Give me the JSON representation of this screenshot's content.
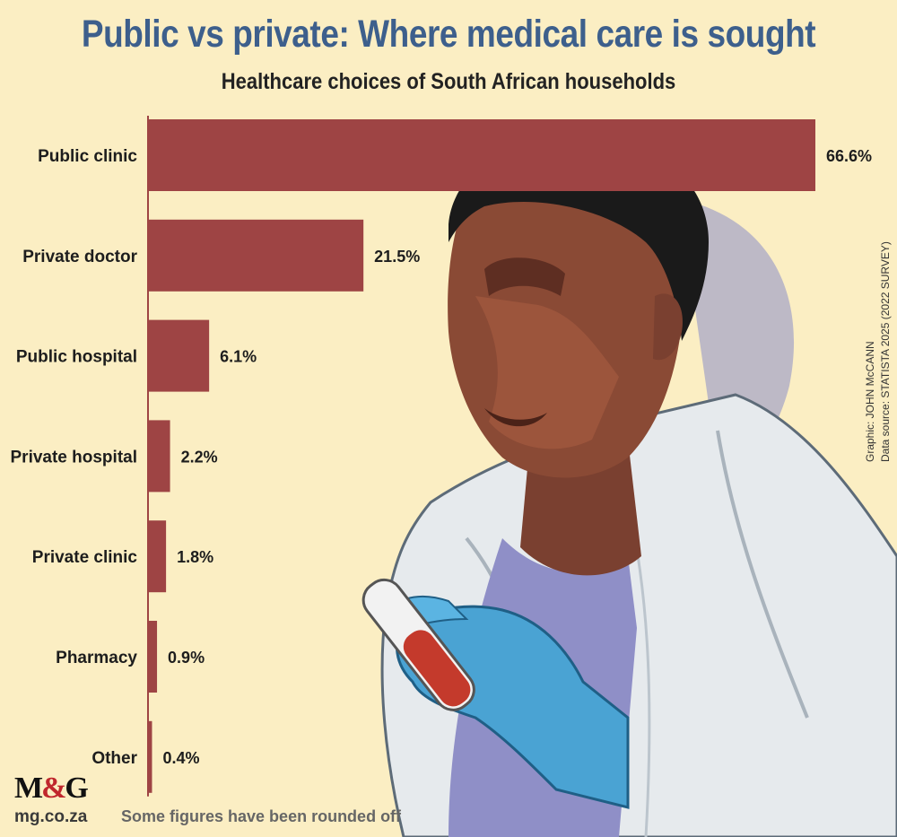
{
  "header": {
    "title": "Public vs private: Where medical care is sought",
    "subtitle": "Healthcare choices of South African households"
  },
  "chart_data": {
    "type": "bar",
    "orientation": "horizontal",
    "title": "Public vs private: Where medical care is sought",
    "subtitle": "Healthcare choices of South African households",
    "categories": [
      "Public clinic",
      "Private doctor",
      "Public hospital",
      "Private hospital",
      "Private clinic",
      "Pharmacy",
      "Other"
    ],
    "values": [
      66.6,
      21.5,
      6.1,
      2.2,
      1.8,
      0.9,
      0.4
    ],
    "value_labels": [
      "66.6%",
      "21.5%",
      "6.1%",
      "2.2%",
      "1.8%",
      "0.9%",
      "0.4%"
    ],
    "unit": "%",
    "xlim": [
      0,
      66.6
    ],
    "grid": false,
    "bar_color": "#9e4444"
  },
  "credits": {
    "graphic": "Graphic: JOHN McCANN",
    "source": "Data source: STATISTA 2025 (2022 SURVEY)"
  },
  "footer": {
    "logo_m": "M",
    "logo_amp": "&",
    "logo_g": "G",
    "site": "mg.co.za",
    "note": "Some figures have been rounded off"
  },
  "colors": {
    "background": "#fbeec3",
    "title": "#3d5f8c",
    "bar": "#9e4444",
    "glove": "#4aa3d3",
    "coat": "#e8ecef"
  }
}
